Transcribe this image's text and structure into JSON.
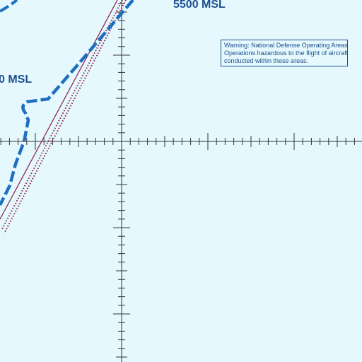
{
  "map": {
    "background_color": "#e4f8fd",
    "line_color": "#1f4f8f",
    "boundary_color": "#1f6fc0",
    "restricted_color": "#8b1a4a",
    "tick_color": "#333333"
  },
  "labels": {
    "altitude_top": "5500 MSL",
    "altitude_left": "0 MSL"
  },
  "warning": {
    "line1": "Warning: National Defense Operating Areas",
    "line2": "Operations hazardous to the flight of aircraft",
    "line3": "conducted within these areas."
  }
}
